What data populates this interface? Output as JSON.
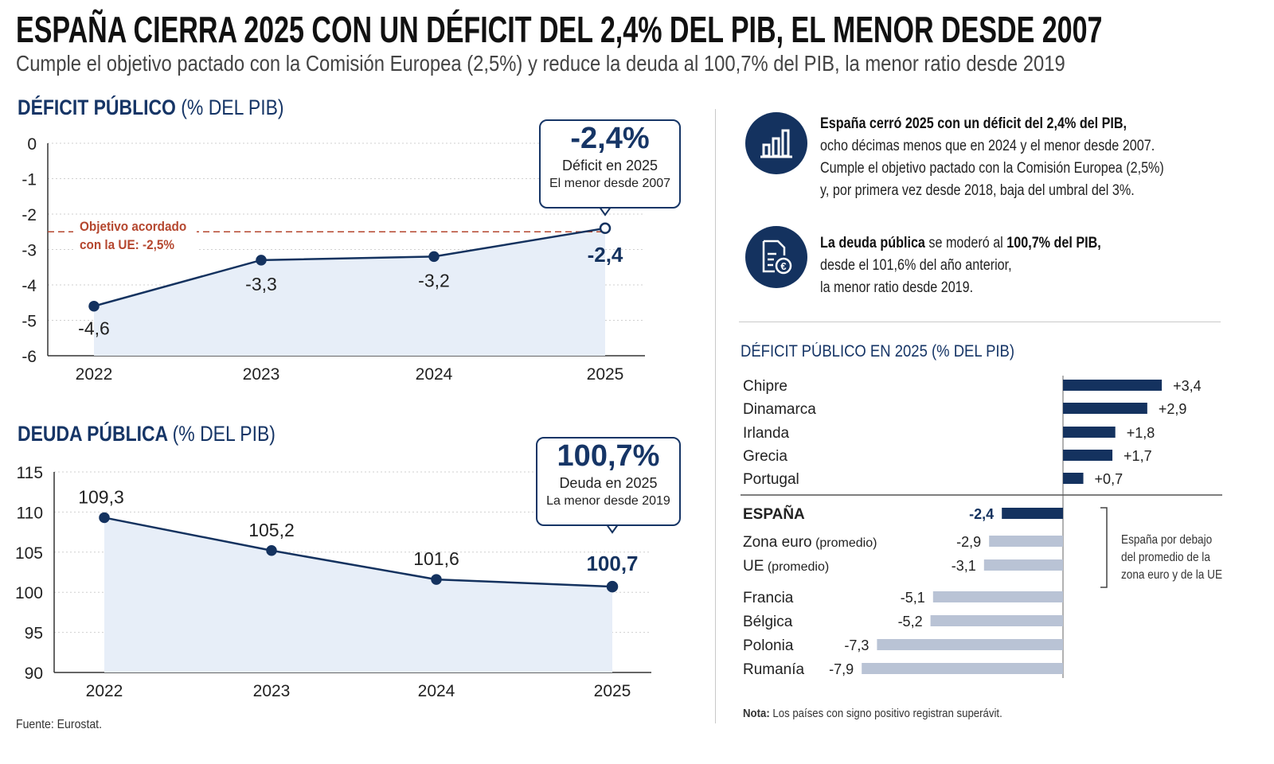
{
  "title": "ESPAÑA CIERRA 2025 CON UN DÉFICIT DEL 2,4% DEL PIB, EL MENOR DESDE 2007",
  "subtitle": "Cumple el objetivo pactado con la Comisión Europea (2,5%) y reduce la deuda al 100,7% del PIB, la menor ratio desde 2019",
  "colors": {
    "navy": "#14325f",
    "area_fill": "#e7eef8",
    "target_line": "#b5472f",
    "grey_bar": "#b9c3d5"
  },
  "chart_data": [
    {
      "type": "line",
      "title": "DÉFICIT PÚBLICO",
      "title_unit": "(% DEL PIB)",
      "x": [
        "2022",
        "2023",
        "2024",
        "2025"
      ],
      "values": [
        -4.6,
        -3.3,
        -3.2,
        -2.4
      ],
      "data_labels": [
        "-4,6",
        "-3,3",
        "-3,2",
        "-2,4"
      ],
      "yticks": [
        "0",
        "-1",
        "-2",
        "-3",
        "-4",
        "-5",
        "-6"
      ],
      "ylim": [
        -6,
        0
      ],
      "grid": true,
      "target": {
        "value": -2.5,
        "label_line1": "Objetivo acordado",
        "label_line2": "con la UE: -2,5%"
      },
      "callout": {
        "value": "-2,4%",
        "line1": "Déficit en 2025",
        "line2": "El menor desde 2007"
      }
    },
    {
      "type": "line",
      "title": "DEUDA PÚBLICA",
      "title_unit": "(% DEL PIB)",
      "x": [
        "2022",
        "2023",
        "2024",
        "2025"
      ],
      "values": [
        109.3,
        105.2,
        101.6,
        100.7
      ],
      "data_labels": [
        "109,3",
        "105,2",
        "101,6",
        "100,7"
      ],
      "yticks": [
        "115",
        "110",
        "105",
        "100",
        "95",
        "90"
      ],
      "ylim": [
        90,
        115
      ],
      "grid": true,
      "callout": {
        "value": "100,7%",
        "line1": "Deuda en 2025",
        "line2": "La menor desde 2019"
      }
    },
    {
      "type": "bar",
      "orientation": "horizontal",
      "title": "DÉFICIT PÚBLICO EN 2025 (% DEL PIB)",
      "categories": [
        "Chipre",
        "Dinamarca",
        "Irlanda",
        "Grecia",
        "Portugal",
        "ESPAÑA",
        "Zona euro",
        "UE",
        "Francia",
        "Bélgica",
        "Polonia",
        "Rumanía"
      ],
      "category_suffix": [
        "",
        "",
        "",
        "",
        "",
        "",
        "(promedio)",
        "(promedio)",
        "",
        "",
        "",
        ""
      ],
      "values": [
        3.4,
        2.9,
        1.8,
        1.7,
        0.7,
        -2.4,
        -2.9,
        -3.1,
        -5.1,
        -5.2,
        -7.3,
        -7.9
      ],
      "data_labels": [
        "+3,4",
        "+2,9",
        "+1,8",
        "+1,7",
        "+0,7",
        "-2,4",
        "-2,9",
        "-3,1",
        "-5,1",
        "-5,2",
        "-7,3",
        "-7,9"
      ],
      "highlight": "ESPAÑA",
      "annotation": [
        "España por debajo",
        "del promedio de la",
        "zona euro y de la UE"
      ]
    }
  ],
  "info": [
    {
      "icon": "bar-chart-icon",
      "bold": "España cerró 2025 con un déficit del 2,4% del PIB,",
      "lines": [
        "ocho décimas menos que en 2024 y el menor desde 2007.",
        "Cumple el objetivo pactado con la Comisión Europea (2,5%)",
        "y, por primera vez desde 2018, baja del umbral del 3%."
      ]
    },
    {
      "icon": "euro-document-icon",
      "bold_a": "La deuda pública",
      "mid": " se moderó al ",
      "bold_b": "100,7% del PIB,",
      "lines": [
        "desde el 101,6% del año anterior,",
        "la menor ratio desde 2019."
      ]
    }
  ],
  "source": "Fuente: Eurostat.",
  "note": {
    "label": "Nota:",
    "text": " Los países con signo positivo registran superávit."
  }
}
